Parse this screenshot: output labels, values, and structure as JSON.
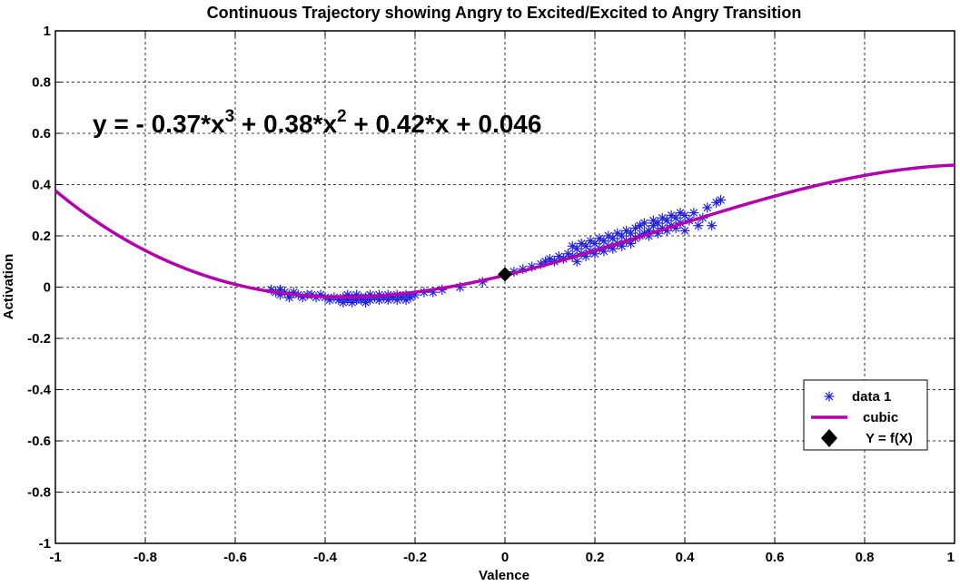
{
  "chart_data": {
    "type": "scatter",
    "title": "Continuous Trajectory showing Angry to Excited/Excited to Angry Transition",
    "xlabel": "Valence",
    "ylabel": "Activation",
    "xlim": [
      -1,
      1
    ],
    "ylim": [
      -1,
      1
    ],
    "grid": true,
    "x_ticks": [
      "-1",
      "-0.8",
      "-0.6",
      "-0.4",
      "-0.2",
      "0",
      "0.2",
      "0.4",
      "0.6",
      "0.8",
      "1"
    ],
    "y_ticks": [
      "1",
      "0.8",
      "0.6",
      "0.4",
      "0.2",
      "0",
      "-0.2",
      "-0.4",
      "-0.6",
      "-0.8",
      "-1"
    ],
    "annotation": {
      "parts": [
        "y = - 0.37*x",
        "3",
        " + 0.38*x",
        "2",
        " + 0.42*x + 0.046"
      ]
    },
    "legend": {
      "placement": "bottom-right",
      "entries": [
        "data 1",
        "cubic",
        "Y = f(X)"
      ]
    },
    "series": [
      {
        "name": "data 1",
        "marker": "asterisk",
        "color": "#2020e0",
        "points": [
          [
            -0.52,
            -0.01
          ],
          [
            -0.51,
            -0.02
          ],
          [
            -0.5,
            -0.01
          ],
          [
            -0.5,
            -0.03
          ],
          [
            -0.49,
            -0.02
          ],
          [
            -0.48,
            -0.03
          ],
          [
            -0.48,
            -0.04
          ],
          [
            -0.47,
            -0.02
          ],
          [
            -0.46,
            -0.03
          ],
          [
            -0.45,
            -0.04
          ],
          [
            -0.44,
            -0.03
          ],
          [
            -0.43,
            -0.03
          ],
          [
            -0.42,
            -0.04
          ],
          [
            -0.41,
            -0.03
          ],
          [
            -0.4,
            -0.04
          ],
          [
            -0.39,
            -0.05
          ],
          [
            -0.38,
            -0.04
          ],
          [
            -0.37,
            -0.05
          ],
          [
            -0.36,
            -0.04
          ],
          [
            -0.36,
            -0.06
          ],
          [
            -0.35,
            -0.05
          ],
          [
            -0.35,
            -0.03
          ],
          [
            -0.34,
            -0.04
          ],
          [
            -0.34,
            -0.06
          ],
          [
            -0.33,
            -0.05
          ],
          [
            -0.33,
            -0.03
          ],
          [
            -0.32,
            -0.04
          ],
          [
            -0.32,
            -0.05
          ],
          [
            -0.31,
            -0.04
          ],
          [
            -0.31,
            -0.06
          ],
          [
            -0.3,
            -0.03
          ],
          [
            -0.3,
            -0.05
          ],
          [
            -0.29,
            -0.04
          ],
          [
            -0.28,
            -0.03
          ],
          [
            -0.28,
            -0.05
          ],
          [
            -0.27,
            -0.04
          ],
          [
            -0.26,
            -0.03
          ],
          [
            -0.26,
            -0.05
          ],
          [
            -0.25,
            -0.04
          ],
          [
            -0.24,
            -0.03
          ],
          [
            -0.24,
            -0.05
          ],
          [
            -0.23,
            -0.04
          ],
          [
            -0.22,
            -0.03
          ],
          [
            -0.22,
            -0.05
          ],
          [
            -0.21,
            -0.04
          ],
          [
            -0.2,
            -0.03
          ],
          [
            -0.18,
            -0.02
          ],
          [
            -0.16,
            -0.02
          ],
          [
            -0.14,
            -0.01
          ],
          [
            -0.1,
            0.0
          ],
          [
            -0.05,
            0.02
          ],
          [
            0.0,
            0.05
          ],
          [
            0.02,
            0.06
          ],
          [
            0.04,
            0.07
          ],
          [
            0.06,
            0.08
          ],
          [
            0.08,
            0.09
          ],
          [
            0.09,
            0.1
          ],
          [
            0.1,
            0.11
          ],
          [
            0.11,
            0.1
          ],
          [
            0.12,
            0.12
          ],
          [
            0.13,
            0.11
          ],
          [
            0.14,
            0.13
          ],
          [
            0.15,
            0.16
          ],
          [
            0.15,
            0.12
          ],
          [
            0.16,
            0.1
          ],
          [
            0.16,
            0.15
          ],
          [
            0.17,
            0.13
          ],
          [
            0.17,
            0.17
          ],
          [
            0.18,
            0.12
          ],
          [
            0.18,
            0.16
          ],
          [
            0.19,
            0.14
          ],
          [
            0.19,
            0.18
          ],
          [
            0.2,
            0.13
          ],
          [
            0.2,
            0.17
          ],
          [
            0.21,
            0.15
          ],
          [
            0.21,
            0.19
          ],
          [
            0.22,
            0.14
          ],
          [
            0.22,
            0.18
          ],
          [
            0.23,
            0.16
          ],
          [
            0.23,
            0.2
          ],
          [
            0.24,
            0.15
          ],
          [
            0.24,
            0.19
          ],
          [
            0.25,
            0.17
          ],
          [
            0.25,
            0.21
          ],
          [
            0.26,
            0.16
          ],
          [
            0.26,
            0.2
          ],
          [
            0.27,
            0.18
          ],
          [
            0.27,
            0.22
          ],
          [
            0.28,
            0.17
          ],
          [
            0.28,
            0.21
          ],
          [
            0.29,
            0.19
          ],
          [
            0.29,
            0.23
          ],
          [
            0.3,
            0.2
          ],
          [
            0.3,
            0.24
          ],
          [
            0.31,
            0.21
          ],
          [
            0.31,
            0.25
          ],
          [
            0.32,
            0.22
          ],
          [
            0.32,
            0.2
          ],
          [
            0.33,
            0.24
          ],
          [
            0.33,
            0.26
          ],
          [
            0.34,
            0.21
          ],
          [
            0.34,
            0.25
          ],
          [
            0.35,
            0.23
          ],
          [
            0.35,
            0.27
          ],
          [
            0.36,
            0.22
          ],
          [
            0.36,
            0.26
          ],
          [
            0.37,
            0.24
          ],
          [
            0.37,
            0.28
          ],
          [
            0.38,
            0.23
          ],
          [
            0.38,
            0.27
          ],
          [
            0.39,
            0.29
          ],
          [
            0.39,
            0.25
          ],
          [
            0.4,
            0.28
          ],
          [
            0.4,
            0.22
          ],
          [
            0.41,
            0.26
          ],
          [
            0.42,
            0.29
          ],
          [
            0.43,
            0.24
          ],
          [
            0.44,
            0.27
          ],
          [
            0.45,
            0.31
          ],
          [
            0.46,
            0.24
          ],
          [
            0.47,
            0.33
          ],
          [
            0.48,
            0.34
          ]
        ]
      },
      {
        "name": "cubic",
        "type": "line",
        "color": "#b000b0",
        "coefficients": [
          -0.37,
          0.38,
          0.42,
          0.046
        ]
      },
      {
        "name": "Y = f(X)",
        "marker": "diamond",
        "color": "#000000",
        "points": [
          [
            0,
            0.05
          ]
        ]
      }
    ]
  }
}
